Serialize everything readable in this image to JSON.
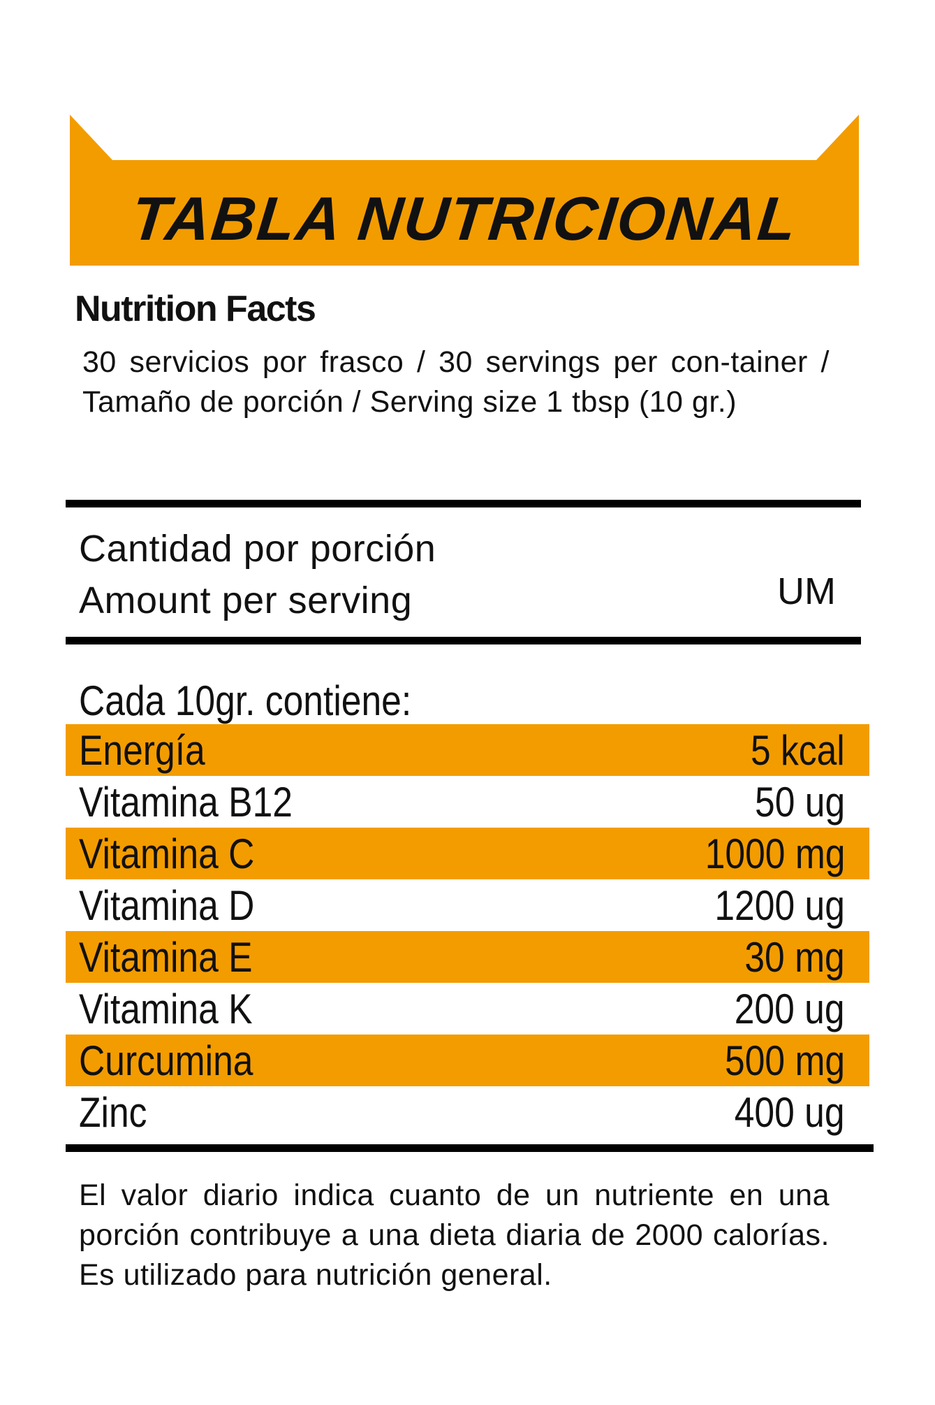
{
  "colors": {
    "accent": "#F39C00",
    "text": "#111111"
  },
  "header": {
    "title": "TABLA NUTRICIONAL"
  },
  "facts": {
    "heading": "Nutrition Facts",
    "servings": "30 servicios por frasco / 30 servings per con-tainer / Tamaño de porción / Serving size 1 tbsp (10 gr.)"
  },
  "amount": {
    "line1": "Cantidad por porción",
    "line2": "Amount per serving",
    "unit_header": "UM"
  },
  "table": {
    "intro": "Cada 10gr. contiene:",
    "rows": [
      {
        "name": "Energía",
        "value": "5 kcal"
      },
      {
        "name": "Vitamina B12",
        "value": "50 ug"
      },
      {
        "name": "Vitamina C",
        "value": "1000 mg"
      },
      {
        "name": "Vitamina D",
        "value": "1200 ug"
      },
      {
        "name": "Vitamina E",
        "value": "30 mg"
      },
      {
        "name": "Vitamina K",
        "value": "200 ug"
      },
      {
        "name": "Curcumina",
        "value": "500 mg"
      },
      {
        "name": "Zinc",
        "value": "400 ug"
      }
    ]
  },
  "footer": {
    "note": "El valor diario indica cuanto de un nutriente en una porción contribuye a una dieta diaria de 2000 calorías. Es utilizado para nutrición general."
  }
}
